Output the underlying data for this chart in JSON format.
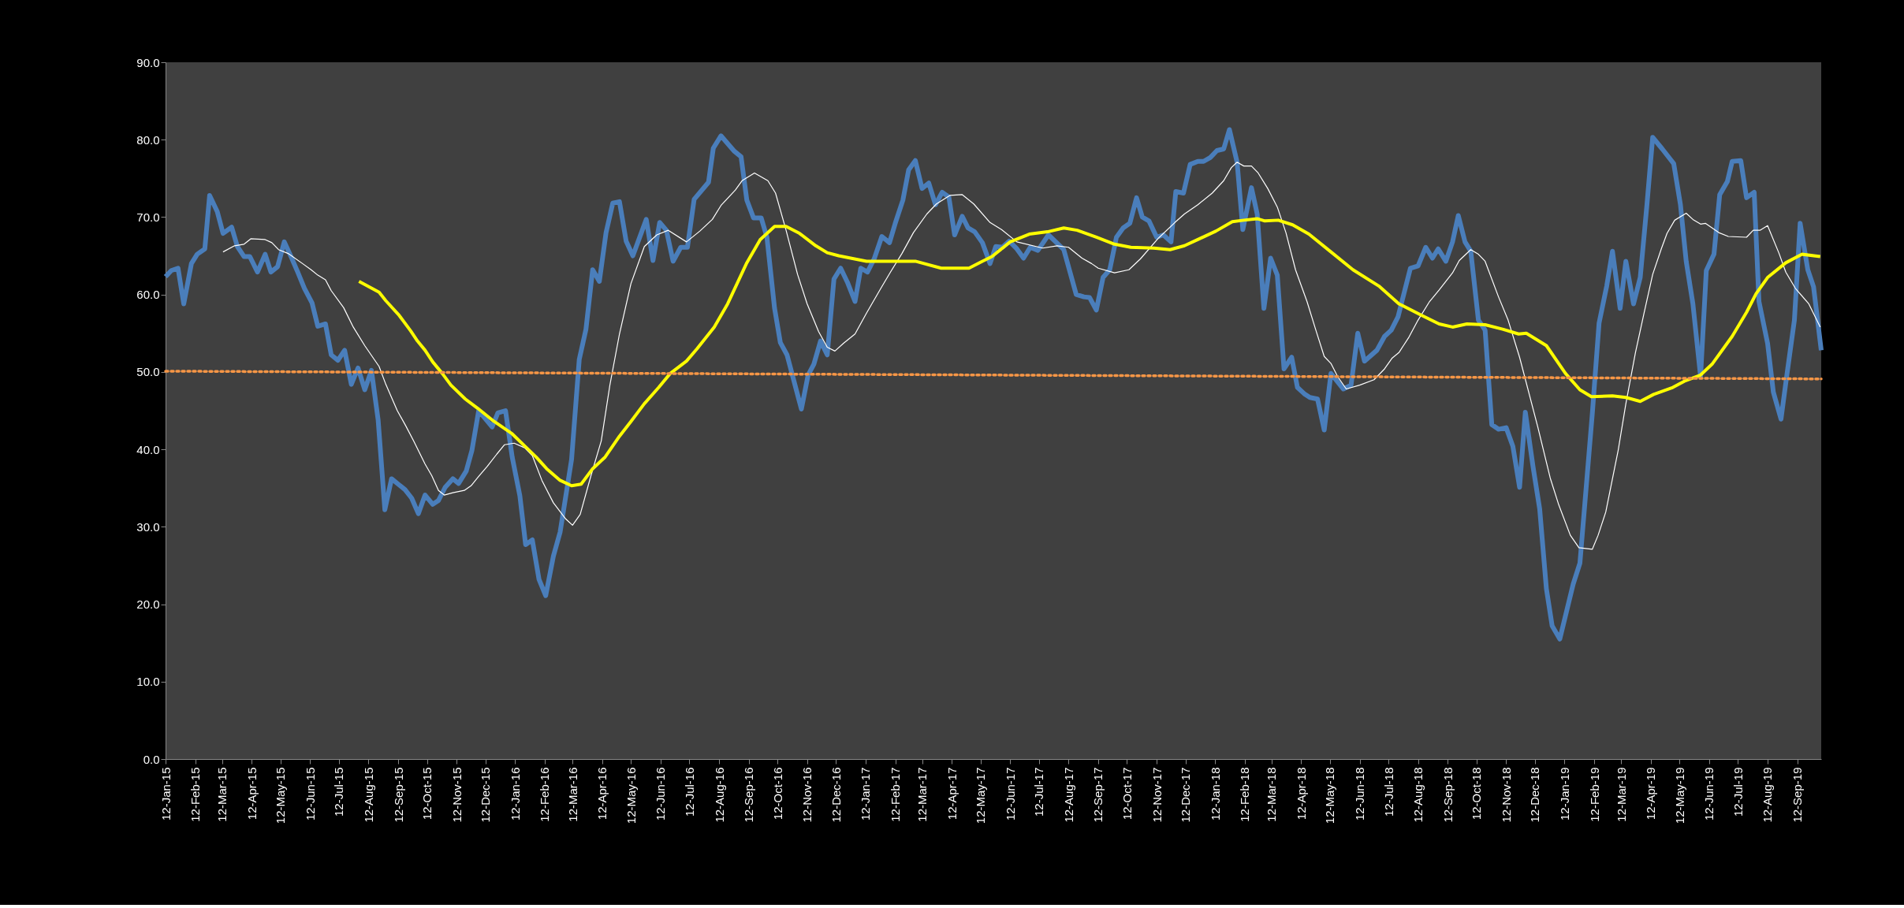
{
  "chart_data": {
    "type": "line",
    "marker": "none",
    "grid": false,
    "ylim": [
      0,
      90
    ],
    "yticks": [
      {
        "value": 0,
        "label": "0.0"
      },
      {
        "value": 10,
        "label": "10.0"
      },
      {
        "value": 20,
        "label": "20.0"
      },
      {
        "value": 30,
        "label": "30.0"
      },
      {
        "value": 40,
        "label": "40.0"
      },
      {
        "value": 50,
        "label": "50.0"
      },
      {
        "value": 60,
        "label": "60.0"
      },
      {
        "value": 70,
        "label": "70.0"
      },
      {
        "value": 80,
        "label": "80.0"
      },
      {
        "value": 90,
        "label": "90.0"
      }
    ],
    "xlim": [
      "2015-01-12",
      "2019-10-07"
    ],
    "xticks": [
      {
        "value": "2015-01-12",
        "label": "12-Jan-15"
      },
      {
        "value": "2015-02-12",
        "label": "12-Feb-15"
      },
      {
        "value": "2015-03-12",
        "label": "12-Mar-15"
      },
      {
        "value": "2015-04-12",
        "label": "12-Apr-15"
      },
      {
        "value": "2015-05-12",
        "label": "12-May-15"
      },
      {
        "value": "2015-06-12",
        "label": "12-Jun-15"
      },
      {
        "value": "2015-07-12",
        "label": "12-Jul-15"
      },
      {
        "value": "2015-08-12",
        "label": "12-Aug-15"
      },
      {
        "value": "2015-09-12",
        "label": "12-Sep-15"
      },
      {
        "value": "2015-10-12",
        "label": "12-Oct-15"
      },
      {
        "value": "2015-11-12",
        "label": "12-Nov-15"
      },
      {
        "value": "2015-12-12",
        "label": "12-Dec-15"
      },
      {
        "value": "2016-01-12",
        "label": "12-Jan-16"
      },
      {
        "value": "2016-02-12",
        "label": "12-Feb-16"
      },
      {
        "value": "2016-03-12",
        "label": "12-Mar-16"
      },
      {
        "value": "2016-04-12",
        "label": "12-Apr-16"
      },
      {
        "value": "2016-05-12",
        "label": "12-May-16"
      },
      {
        "value": "2016-06-12",
        "label": "12-Jun-16"
      },
      {
        "value": "2016-07-12",
        "label": "12-Jul-16"
      },
      {
        "value": "2016-08-12",
        "label": "12-Aug-16"
      },
      {
        "value": "2016-09-12",
        "label": "12-Sep-16"
      },
      {
        "value": "2016-10-12",
        "label": "12-Oct-16"
      },
      {
        "value": "2016-11-12",
        "label": "12-Nov-16"
      },
      {
        "value": "2016-12-12",
        "label": "12-Dec-16"
      },
      {
        "value": "2017-01-12",
        "label": "12-Jan-17"
      },
      {
        "value": "2017-02-12",
        "label": "12-Feb-17"
      },
      {
        "value": "2017-03-12",
        "label": "12-Mar-17"
      },
      {
        "value": "2017-04-12",
        "label": "12-Apr-17"
      },
      {
        "value": "2017-05-12",
        "label": "12-May-17"
      },
      {
        "value": "2017-06-12",
        "label": "12-Jun-17"
      },
      {
        "value": "2017-07-12",
        "label": "12-Jul-17"
      },
      {
        "value": "2017-08-12",
        "label": "12-Aug-17"
      },
      {
        "value": "2017-09-12",
        "label": "12-Sep-17"
      },
      {
        "value": "2017-10-12",
        "label": "12-Oct-17"
      },
      {
        "value": "2017-11-12",
        "label": "12-Nov-17"
      },
      {
        "value": "2017-12-12",
        "label": "12-Dec-17"
      },
      {
        "value": "2018-01-12",
        "label": "12-Jan-18"
      },
      {
        "value": "2018-02-12",
        "label": "12-Feb-18"
      },
      {
        "value": "2018-03-12",
        "label": "12-Mar-18"
      },
      {
        "value": "2018-04-12",
        "label": "12-Apr-18"
      },
      {
        "value": "2018-05-12",
        "label": "12-May-18"
      },
      {
        "value": "2018-06-12",
        "label": "12-Jun-18"
      },
      {
        "value": "2018-07-12",
        "label": "12-Jul-18"
      },
      {
        "value": "2018-08-12",
        "label": "12-Aug-18"
      },
      {
        "value": "2018-09-12",
        "label": "12-Sep-18"
      },
      {
        "value": "2018-10-12",
        "label": "12-Oct-18"
      },
      {
        "value": "2018-11-12",
        "label": "12-Nov-18"
      },
      {
        "value": "2018-12-12",
        "label": "12-Dec-18"
      },
      {
        "value": "2019-01-12",
        "label": "12-Jan-19"
      },
      {
        "value": "2019-02-12",
        "label": "12-Feb-19"
      },
      {
        "value": "2019-03-12",
        "label": "12-Mar-19"
      },
      {
        "value": "2019-04-12",
        "label": "12-Apr-19"
      },
      {
        "value": "2019-05-12",
        "label": "12-May-19"
      },
      {
        "value": "2019-06-12",
        "label": "12-Jun-19"
      },
      {
        "value": "2019-07-12",
        "label": "12-Jul-19"
      },
      {
        "value": "2019-08-12",
        "label": "12-Aug-19"
      },
      {
        "value": "2019-09-12",
        "label": "12-Sep-19"
      }
    ],
    "series": [
      {
        "color": "#4a7ebb",
        "line_style": "solid",
        "x": [
          "2015-01-12",
          "2015-01-18",
          "2015-01-25",
          "2015-01-31",
          "2015-02-08",
          "2015-02-14",
          "2015-02-22",
          "2015-02-27",
          "2015-03-07",
          "2015-03-13",
          "2015-03-22",
          "2015-03-28",
          "2015-04-04",
          "2015-04-10",
          "2015-04-18",
          "2015-04-26",
          "2015-05-02",
          "2015-05-09",
          "2015-05-16",
          "2015-05-23",
          "2015-05-30",
          "2015-06-06",
          "2015-06-14",
          "2015-06-20",
          "2015-06-28",
          "2015-07-04",
          "2015-07-11",
          "2015-07-18",
          "2015-07-25",
          "2015-08-01",
          "2015-08-08",
          "2015-08-15",
          "2015-08-22",
          "2015-08-29",
          "2015-09-05",
          "2015-09-19",
          "2015-09-26",
          "2015-10-03",
          "2015-10-10",
          "2015-10-18",
          "2015-10-24",
          "2015-10-31",
          "2015-11-08",
          "2015-11-14",
          "2015-11-22",
          "2015-11-28",
          "2015-12-05",
          "2015-12-19",
          "2015-12-25",
          "2016-01-02",
          "2016-01-09",
          "2016-01-17",
          "2016-01-23",
          "2016-01-30",
          "2016-02-06",
          "2016-02-13",
          "2016-02-21",
          "2016-02-28",
          "2016-03-11",
          "2016-03-19",
          "2016-03-26",
          "2016-04-02",
          "2016-04-09",
          "2016-04-16",
          "2016-04-23",
          "2016-04-30",
          "2016-05-07",
          "2016-05-14",
          "2016-05-28",
          "2016-06-04",
          "2016-06-11",
          "2016-06-18",
          "2016-06-25",
          "2016-07-03",
          "2016-07-10",
          "2016-07-17",
          "2016-08-01",
          "2016-08-06",
          "2016-08-14",
          "2016-08-28",
          "2016-09-04",
          "2016-09-10",
          "2016-09-17",
          "2016-09-25",
          "2016-10-01",
          "2016-10-09",
          "2016-10-15",
          "2016-10-22",
          "2016-11-06",
          "2016-11-13",
          "2016-11-19",
          "2016-11-26",
          "2016-12-03",
          "2016-12-10",
          "2016-12-17",
          "2016-12-24",
          "2017-01-01",
          "2017-01-07",
          "2017-01-14",
          "2017-01-21",
          "2017-01-29",
          "2017-02-06",
          "2017-02-12",
          "2017-02-20",
          "2017-02-26",
          "2017-03-05",
          "2017-03-12",
          "2017-03-19",
          "2017-03-26",
          "2017-04-02",
          "2017-04-09",
          "2017-04-15",
          "2017-04-23",
          "2017-04-29",
          "2017-05-06",
          "2017-05-14",
          "2017-05-22",
          "2017-05-28",
          "2017-06-04",
          "2017-06-11",
          "2017-06-19",
          "2017-06-26",
          "2017-07-03",
          "2017-07-11",
          "2017-07-22",
          "2017-08-07",
          "2017-08-20",
          "2017-08-28",
          "2017-09-03",
          "2017-09-10",
          "2017-09-17",
          "2017-09-24",
          "2017-10-01",
          "2017-10-08",
          "2017-10-15",
          "2017-10-22",
          "2017-10-28",
          "2017-11-04",
          "2017-11-12",
          "2017-11-19",
          "2017-11-27",
          "2017-12-02",
          "2017-12-10",
          "2017-12-17",
          "2017-12-25",
          "2017-12-31",
          "2018-01-07",
          "2018-01-14",
          "2018-01-21",
          "2018-01-27",
          "2018-02-04",
          "2018-02-10",
          "2018-02-19",
          "2018-02-25",
          "2018-03-04",
          "2018-03-11",
          "2018-03-18",
          "2018-03-25",
          "2018-04-02",
          "2018-04-08",
          "2018-04-15",
          "2018-04-21",
          "2018-04-29",
          "2018-05-06",
          "2018-05-13",
          "2018-05-26",
          "2018-06-03",
          "2018-06-10",
          "2018-06-17",
          "2018-06-30",
          "2018-07-08",
          "2018-07-15",
          "2018-07-22",
          "2018-08-04",
          "2018-08-12",
          "2018-08-20",
          "2018-08-27",
          "2018-09-02",
          "2018-09-10",
          "2018-09-17",
          "2018-09-23",
          "2018-09-30",
          "2018-10-06",
          "2018-10-14",
          "2018-10-21",
          "2018-10-28",
          "2018-11-04",
          "2018-11-12",
          "2018-11-19",
          "2018-11-26",
          "2018-12-02",
          "2018-12-10",
          "2018-12-17",
          "2018-12-24",
          "2018-12-30",
          "2019-01-07",
          "2019-01-21",
          "2019-01-28",
          "2019-02-10",
          "2019-02-17",
          "2019-02-25",
          "2019-03-03",
          "2019-03-11",
          "2019-03-17",
          "2019-03-25",
          "2019-04-01",
          "2019-04-08",
          "2019-04-14",
          "2019-04-24",
          "2019-05-06",
          "2019-05-13",
          "2019-05-19",
          "2019-05-26",
          "2019-06-03",
          "2019-06-09",
          "2019-06-17",
          "2019-06-23",
          "2019-07-01",
          "2019-07-06",
          "2019-07-15",
          "2019-07-21",
          "2019-07-29",
          "2019-08-03",
          "2019-08-12",
          "2019-08-18",
          "2019-08-26",
          "2019-09-01",
          "2019-09-09",
          "2019-09-15",
          "2019-09-23",
          "2019-09-29",
          "2019-10-07"
        ],
        "values": [
          62.3,
          63.1,
          63.4,
          58.8,
          64.0,
          65.2,
          65.9,
          72.8,
          70.7,
          67.9,
          68.7,
          66.2,
          64.9,
          64.9,
          62.9,
          65.2,
          62.9,
          63.6,
          66.8,
          64.9,
          62.9,
          60.8,
          58.9,
          55.9,
          56.2,
          52.2,
          51.5,
          52.8,
          48.4,
          50.5,
          47.7,
          50.2,
          43.8,
          32.2,
          36.2,
          34.8,
          33.7,
          31.7,
          34.1,
          32.9,
          33.4,
          35.1,
          36.2,
          35.6,
          37.2,
          39.9,
          45.0,
          42.9,
          44.7,
          45.0,
          39.0,
          34.0,
          27.7,
          28.3,
          23.2,
          21.1,
          26.2,
          29.3,
          38.7,
          51.6,
          55.5,
          63.2,
          61.7,
          68.0,
          71.8,
          72.0,
          66.9,
          65.0,
          69.7,
          64.4,
          69.3,
          68.3,
          64.3,
          66.1,
          66.1,
          72.3,
          74.5,
          78.9,
          80.5,
          78.5,
          77.8,
          72.2,
          69.9,
          69.9,
          67.4,
          58.2,
          53.8,
          52.2,
          45.2,
          49.6,
          51.0,
          54.0,
          52.2,
          62.0,
          63.4,
          61.6,
          59.1,
          63.4,
          62.9,
          64.6,
          67.5,
          66.7,
          69.2,
          72.2,
          76.1,
          77.3,
          73.7,
          74.4,
          71.6,
          73.2,
          72.6,
          67.7,
          70.1,
          68.6,
          68.1,
          66.7,
          64.0,
          66.2,
          66.1,
          66.9,
          65.9,
          64.7,
          66.1,
          65.7,
          67.7,
          65.8,
          60.0,
          59.7,
          59.6,
          58.0,
          62.2,
          63.2,
          67.4,
          68.6,
          69.2,
          72.5,
          70.0,
          69.5,
          67.4,
          67.7,
          66.8,
          73.3,
          73.1,
          76.8,
          77.2,
          77.2,
          77.7,
          78.6,
          78.8,
          81.3,
          77.1,
          68.4,
          73.8,
          70.4,
          58.2,
          64.7,
          62.5,
          50.4,
          51.9,
          48.0,
          47.2,
          46.7,
          46.5,
          42.5,
          49.8,
          47.8,
          48.3,
          55.0,
          51.4,
          52.8,
          54.6,
          55.4,
          57.1,
          63.4,
          63.7,
          66.1,
          64.7,
          65.9,
          64.3,
          66.8,
          70.2,
          66.8,
          65.6,
          56.7,
          55.4,
          43.2,
          42.6,
          42.8,
          40.4,
          35.1,
          44.8,
          37.8,
          32.3,
          22.0,
          17.2,
          15.5,
          22.6,
          25.3,
          44.7,
          56.3,
          61.1,
          65.6,
          58.2,
          64.3,
          58.8,
          62.2,
          71.6,
          80.3,
          78.8,
          76.9,
          71.6,
          64.3,
          58.8,
          49.4,
          63.1,
          65.2,
          72.9,
          74.6,
          77.2,
          77.3,
          72.5,
          73.2,
          59.1,
          53.7,
          47.4,
          43.9,
          49.5,
          56.7,
          69.2,
          63.2,
          61.0,
          52.8
        ]
      },
      {
        "color": "#ffffff",
        "line_style": "solid",
        "x": [
          "2015-03-13",
          "2015-03-25",
          "2015-04-04",
          "2015-04-11",
          "2015-04-26",
          "2015-05-03",
          "2015-05-10",
          "2015-05-20",
          "2015-06-04",
          "2015-06-13",
          "2015-06-20",
          "2015-06-28",
          "2015-07-04",
          "2015-07-17",
          "2015-07-27",
          "2015-08-08",
          "2015-08-23",
          "2015-08-30",
          "2015-09-11",
          "2015-09-20",
          "2015-09-28",
          "2015-10-10",
          "2015-10-17",
          "2015-10-24",
          "2015-10-30",
          "2015-11-08",
          "2015-11-20",
          "2015-11-27",
          "2015-12-05",
          "2015-12-14",
          "2015-12-24",
          "2016-01-01",
          "2016-01-11",
          "2016-01-22",
          "2016-01-30",
          "2016-02-09",
          "2016-02-21",
          "2016-03-05",
          "2016-03-12",
          "2016-03-20",
          "2016-03-31",
          "2016-04-11",
          "2016-04-20",
          "2016-04-30",
          "2016-05-12",
          "2016-05-26",
          "2016-06-08",
          "2016-06-20",
          "2016-07-09",
          "2016-07-23",
          "2016-08-05",
          "2016-08-14",
          "2016-08-29",
          "2016-09-05",
          "2016-09-18",
          "2016-10-02",
          "2016-10-10",
          "2016-10-21",
          "2016-11-02",
          "2016-11-12",
          "2016-11-24",
          "2016-12-03",
          "2016-12-11",
          "2016-12-20",
          "2017-01-01",
          "2017-01-13",
          "2017-01-28",
          "2017-02-07",
          "2017-02-19",
          "2017-03-03",
          "2017-03-17",
          "2017-03-27",
          "2017-04-10",
          "2017-04-23",
          "2017-05-05",
          "2017-05-22",
          "2017-06-03",
          "2017-06-19",
          "2017-07-16",
          "2017-07-31",
          "2017-08-12",
          "2017-08-26",
          "2017-09-05",
          "2017-09-12",
          "2017-09-29",
          "2017-10-14",
          "2017-10-26",
          "2017-11-14",
          "2017-12-01",
          "2017-12-11",
          "2017-12-25",
          "2018-01-09",
          "2018-01-21",
          "2018-01-29",
          "2018-02-04",
          "2018-02-11",
          "2018-02-19",
          "2018-02-26",
          "2018-03-08",
          "2018-03-18",
          "2018-03-27",
          "2018-04-06",
          "2018-04-18",
          "2018-04-27",
          "2018-05-06",
          "2018-05-13",
          "2018-05-20",
          "2018-05-29",
          "2018-06-12",
          "2018-06-27",
          "2018-07-08",
          "2018-07-16",
          "2018-07-23",
          "2018-08-02",
          "2018-08-12",
          "2018-08-24",
          "2018-09-03",
          "2018-09-17",
          "2018-09-24",
          "2018-10-06",
          "2018-10-14",
          "2018-10-21",
          "2018-11-04",
          "2018-11-14",
          "2018-11-26",
          "2018-12-15",
          "2018-12-28",
          "2019-01-06",
          "2019-01-18",
          "2019-01-27",
          "2019-02-10",
          "2019-02-16",
          "2019-02-24",
          "2019-03-09",
          "2019-03-17",
          "2019-03-27",
          "2019-04-05",
          "2019-04-14",
          "2019-04-23",
          "2019-04-29",
          "2019-05-07",
          "2019-05-19",
          "2019-05-26",
          "2019-06-03",
          "2019-06-08",
          "2019-06-22",
          "2019-07-02",
          "2019-07-21",
          "2019-07-28",
          "2019-08-04",
          "2019-08-12",
          "2019-08-24",
          "2019-08-31",
          "2019-09-10",
          "2019-09-24",
          "2019-10-06"
        ],
        "values": [
          65.5,
          66.3,
          66.5,
          67.2,
          67.1,
          66.7,
          65.8,
          65.3,
          64.0,
          63.2,
          62.5,
          61.9,
          60.5,
          58.3,
          55.8,
          53.4,
          50.7,
          48.4,
          45.0,
          43.0,
          41.1,
          38.1,
          36.6,
          34.7,
          34.1,
          34.4,
          34.7,
          35.3,
          36.5,
          37.8,
          39.4,
          40.6,
          40.8,
          40.2,
          39.2,
          36.0,
          33.1,
          31.0,
          30.2,
          31.6,
          36.5,
          41.1,
          48.3,
          54.9,
          61.4,
          66.2,
          67.7,
          68.3,
          66.8,
          68.2,
          69.7,
          71.5,
          73.5,
          74.7,
          75.7,
          74.7,
          73.1,
          68.3,
          62.6,
          58.8,
          55.2,
          53.2,
          52.7,
          53.7,
          54.9,
          57.6,
          60.8,
          62.9,
          65.3,
          68.0,
          70.4,
          71.7,
          72.8,
          72.9,
          71.7,
          69.3,
          68.4,
          66.8,
          66.0,
          66.3,
          66.1,
          64.7,
          64.0,
          63.4,
          62.8,
          63.2,
          64.6,
          67.3,
          69.3,
          70.4,
          71.6,
          73.1,
          74.7,
          76.4,
          77.1,
          76.6,
          76.6,
          75.7,
          73.7,
          71.3,
          68.0,
          63.2,
          59.1,
          55.5,
          52.0,
          51.1,
          49.4,
          47.8,
          48.3,
          49.0,
          50.4,
          51.8,
          52.5,
          54.4,
          56.7,
          59.1,
          60.6,
          62.8,
          64.4,
          65.8,
          65.2,
          64.3,
          59.7,
          56.7,
          51.9,
          42.9,
          36.3,
          32.8,
          28.9,
          27.3,
          27.1,
          28.9,
          31.9,
          39.9,
          45.9,
          52.5,
          57.6,
          62.6,
          65.9,
          67.9,
          69.6,
          70.5,
          69.7,
          69.1,
          69.2,
          68.0,
          67.5,
          67.4,
          68.3,
          68.3,
          68.9,
          65.3,
          62.9,
          60.8,
          58.8,
          55.8
        ]
      },
      {
        "color": "#ffff00",
        "line_style": "solid",
        "x": [
          "2015-08-02",
          "2015-08-23",
          "2015-08-30",
          "2015-09-13",
          "2015-09-25",
          "2015-10-02",
          "2015-10-10",
          "2015-10-18",
          "2015-10-28",
          "2015-11-06",
          "2015-11-21",
          "2015-12-04",
          "2015-12-19",
          "2016-01-09",
          "2016-01-24",
          "2016-02-03",
          "2016-02-14",
          "2016-02-28",
          "2016-03-11",
          "2016-03-21",
          "2016-04-02",
          "2016-04-15",
          "2016-04-30",
          "2016-05-12",
          "2016-05-26",
          "2016-06-10",
          "2016-06-22",
          "2016-07-09",
          "2016-07-20",
          "2016-08-07",
          "2016-08-21",
          "2016-09-10",
          "2016-09-24",
          "2016-10-09",
          "2016-10-21",
          "2016-11-04",
          "2016-11-21",
          "2016-12-03",
          "2016-12-15",
          "2017-01-13",
          "2017-02-11",
          "2017-03-05",
          "2017-04-01",
          "2017-04-30",
          "2017-05-14",
          "2017-05-24",
          "2017-06-12",
          "2017-07-02",
          "2017-07-21",
          "2017-08-07",
          "2017-08-21",
          "2017-09-10",
          "2017-09-29",
          "2017-10-16",
          "2017-11-09",
          "2017-11-26",
          "2017-12-11",
          "2017-12-25",
          "2018-01-13",
          "2018-01-30",
          "2018-02-11",
          "2018-02-25",
          "2018-03-05",
          "2018-03-19",
          "2018-04-03",
          "2018-04-20",
          "2018-05-12",
          "2018-06-05",
          "2018-07-02",
          "2018-07-23",
          "2018-08-16",
          "2018-09-03",
          "2018-09-17",
          "2018-10-02",
          "2018-10-21",
          "2018-11-09",
          "2018-11-25",
          "2018-12-03",
          "2018-12-24",
          "2019-01-13",
          "2019-01-28",
          "2019-02-09",
          "2019-03-03",
          "2019-03-17",
          "2019-04-01",
          "2019-04-15",
          "2019-05-05",
          "2019-05-17",
          "2019-06-03",
          "2019-06-15",
          "2019-07-06",
          "2019-07-21",
          "2019-07-31",
          "2019-08-12",
          "2019-08-31",
          "2019-09-17",
          "2019-10-06"
        ],
        "values": [
          61.7,
          60.3,
          59.2,
          57.3,
          55.3,
          54.0,
          52.8,
          51.3,
          49.8,
          48.3,
          46.5,
          45.3,
          43.8,
          42.0,
          40.2,
          39.0,
          37.5,
          36.0,
          35.3,
          35.5,
          37.5,
          39.0,
          41.7,
          43.6,
          45.9,
          48.0,
          49.8,
          51.4,
          53.0,
          55.8,
          58.8,
          64.1,
          67.1,
          68.8,
          68.8,
          67.9,
          66.3,
          65.4,
          65.0,
          64.3,
          64.3,
          64.3,
          63.4,
          63.4,
          64.3,
          64.9,
          66.8,
          67.8,
          68.1,
          68.6,
          68.3,
          67.4,
          66.5,
          66.1,
          66.0,
          65.8,
          66.3,
          67.1,
          68.2,
          69.4,
          69.6,
          69.8,
          69.5,
          69.6,
          69.0,
          67.8,
          65.6,
          63.2,
          61.1,
          58.8,
          57.3,
          56.2,
          55.8,
          56.2,
          56.1,
          55.5,
          54.9,
          55.0,
          53.4,
          49.8,
          47.7,
          46.8,
          46.9,
          46.7,
          46.2,
          47.1,
          48.0,
          48.8,
          49.6,
          51.0,
          54.6,
          57.7,
          60.1,
          62.2,
          64.1,
          65.2,
          64.9
        ]
      },
      {
        "color": "#f79646",
        "line_style": "dotted",
        "x": [
          "2015-01-12",
          "2019-10-07"
        ],
        "values": [
          50.1,
          49.1
        ]
      }
    ]
  }
}
